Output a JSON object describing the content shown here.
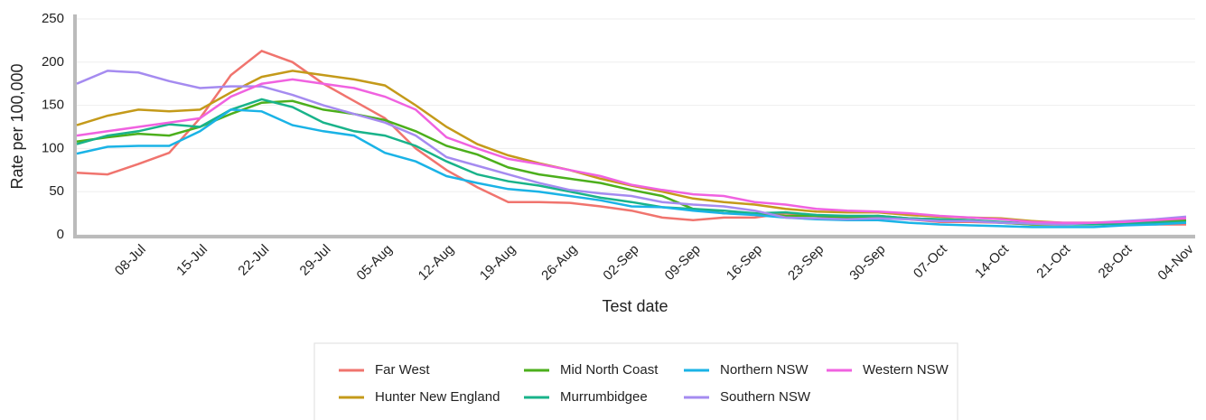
{
  "chart_data": {
    "type": "line",
    "x_label": "Test date",
    "y_label": "Rate per 100,000",
    "categories": [
      null,
      null,
      "08-Jul",
      null,
      "15-Jul",
      null,
      "22-Jul",
      null,
      "29-Jul",
      null,
      "05-Aug",
      null,
      "12-Aug",
      null,
      "19-Aug",
      null,
      "26-Aug",
      null,
      "02-Sep",
      null,
      "09-Sep",
      null,
      "16-Sep",
      null,
      "23-Sep",
      null,
      "30-Sep",
      null,
      "07-Oct",
      null,
      "14-Oct",
      null,
      "21-Oct",
      null,
      "28-Oct",
      null,
      "04-Nov"
    ],
    "ylim": [
      0,
      250
    ],
    "yticks": [
      0,
      50,
      100,
      150,
      200,
      250
    ],
    "grid": true,
    "series": [
      {
        "name": "Far West",
        "color": "#f0746e",
        "values": [
          72,
          70,
          82,
          95,
          135,
          185,
          213,
          200,
          175,
          155,
          135,
          100,
          75,
          55,
          38,
          38,
          37,
          33,
          28,
          20,
          17,
          20,
          20,
          25,
          22,
          18,
          20,
          18,
          15,
          15,
          14,
          12,
          12,
          13,
          13,
          12,
          12
        ]
      },
      {
        "name": "Hunter New England",
        "color": "#c49a1a",
        "values": [
          127,
          138,
          145,
          143,
          145,
          165,
          183,
          190,
          185,
          180,
          173,
          150,
          125,
          105,
          92,
          83,
          75,
          65,
          57,
          50,
          42,
          38,
          35,
          30,
          27,
          26,
          26,
          23,
          21,
          20,
          19,
          16,
          14,
          14,
          15,
          16,
          17
        ]
      },
      {
        "name": "Mid North Coast",
        "color": "#4caf1c",
        "values": [
          108,
          113,
          117,
          115,
          125,
          140,
          153,
          155,
          145,
          140,
          133,
          120,
          103,
          93,
          78,
          70,
          65,
          60,
          52,
          45,
          30,
          25,
          24,
          22,
          22,
          20,
          22,
          19,
          18,
          17,
          14,
          12,
          12,
          13,
          14,
          15,
          17
        ]
      },
      {
        "name": "Murrumbidgee",
        "color": "#19b38a",
        "values": [
          105,
          115,
          120,
          128,
          125,
          145,
          157,
          148,
          130,
          120,
          115,
          103,
          85,
          70,
          62,
          57,
          50,
          43,
          38,
          32,
          30,
          28,
          25,
          26,
          23,
          22,
          22,
          19,
          18,
          17,
          15,
          13,
          12,
          12,
          13,
          14,
          15
        ]
      },
      {
        "name": "Northern NSW",
        "color": "#1ab3e6",
        "values": [
          94,
          102,
          103,
          103,
          120,
          145,
          143,
          127,
          120,
          115,
          95,
          85,
          68,
          60,
          53,
          50,
          45,
          40,
          33,
          32,
          28,
          25,
          23,
          20,
          18,
          17,
          17,
          14,
          12,
          11,
          10,
          9,
          9,
          9,
          11,
          12,
          14
        ]
      },
      {
        "name": "Southern NSW",
        "color": "#a58bf0",
        "values": [
          175,
          190,
          188,
          178,
          170,
          172,
          172,
          162,
          150,
          140,
          130,
          115,
          90,
          80,
          70,
          60,
          52,
          48,
          45,
          38,
          35,
          33,
          28,
          20,
          19,
          18,
          19,
          18,
          16,
          16,
          14,
          13,
          12,
          14,
          16,
          18,
          21
        ]
      },
      {
        "name": "Western NSW",
        "color": "#f062e0",
        "values": [
          115,
          120,
          125,
          130,
          135,
          160,
          175,
          180,
          175,
          170,
          160,
          145,
          113,
          100,
          88,
          82,
          75,
          68,
          58,
          52,
          47,
          45,
          38,
          35,
          30,
          28,
          27,
          25,
          22,
          20,
          18,
          15,
          14,
          14,
          15,
          17,
          19
        ]
      }
    ]
  }
}
